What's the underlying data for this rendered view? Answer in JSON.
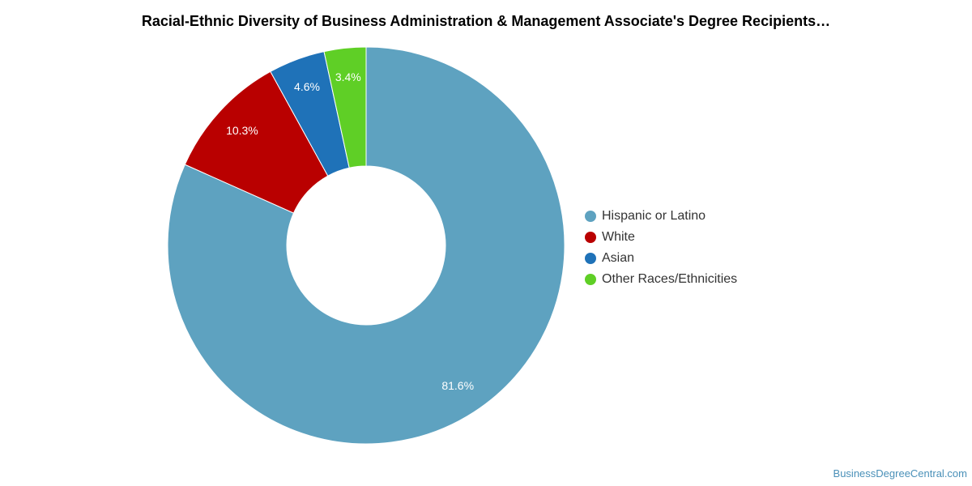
{
  "chart_data": {
    "type": "pie",
    "title": "Racial-Ethnic Diversity of Business Administration & Management Associate's Degree Recipients…",
    "donut": true,
    "legend_position": "right",
    "slices": [
      {
        "name": "Hispanic or Latino",
        "value": 81.6,
        "label": "81.6%",
        "color": "#5ea2c0"
      },
      {
        "name": "White",
        "value": 10.3,
        "label": "10.3%",
        "color": "#b90000"
      },
      {
        "name": "Asian",
        "value": 4.6,
        "label": "4.6%",
        "color": "#1f72b8"
      },
      {
        "name": "Other Races/Ethnicities",
        "value": 3.4,
        "label": "3.4%",
        "color": "#5fcf26"
      }
    ]
  },
  "credit": "BusinessDegreeCentral.com"
}
